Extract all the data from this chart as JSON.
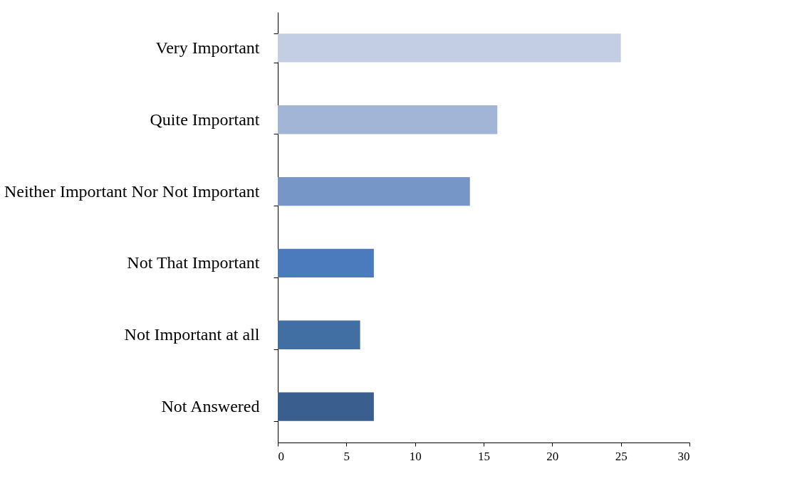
{
  "chart_data": {
    "type": "bar",
    "orientation": "horizontal",
    "categories": [
      "Very Important",
      "Quite Important",
      "Neither Important Nor Not Important",
      "Not That Important",
      "Not Important at all",
      "Not Answered"
    ],
    "values": [
      25,
      16,
      14,
      7,
      6,
      7
    ],
    "colors": [
      "#c3cde3",
      "#a3b5d6",
      "#7596c7",
      "#4b7bbd",
      "#416ea3",
      "#3a5f8e"
    ],
    "xlim": [
      0,
      30
    ],
    "xticks": [
      0,
      5,
      10,
      15,
      20,
      25,
      30
    ],
    "grid": false
  }
}
